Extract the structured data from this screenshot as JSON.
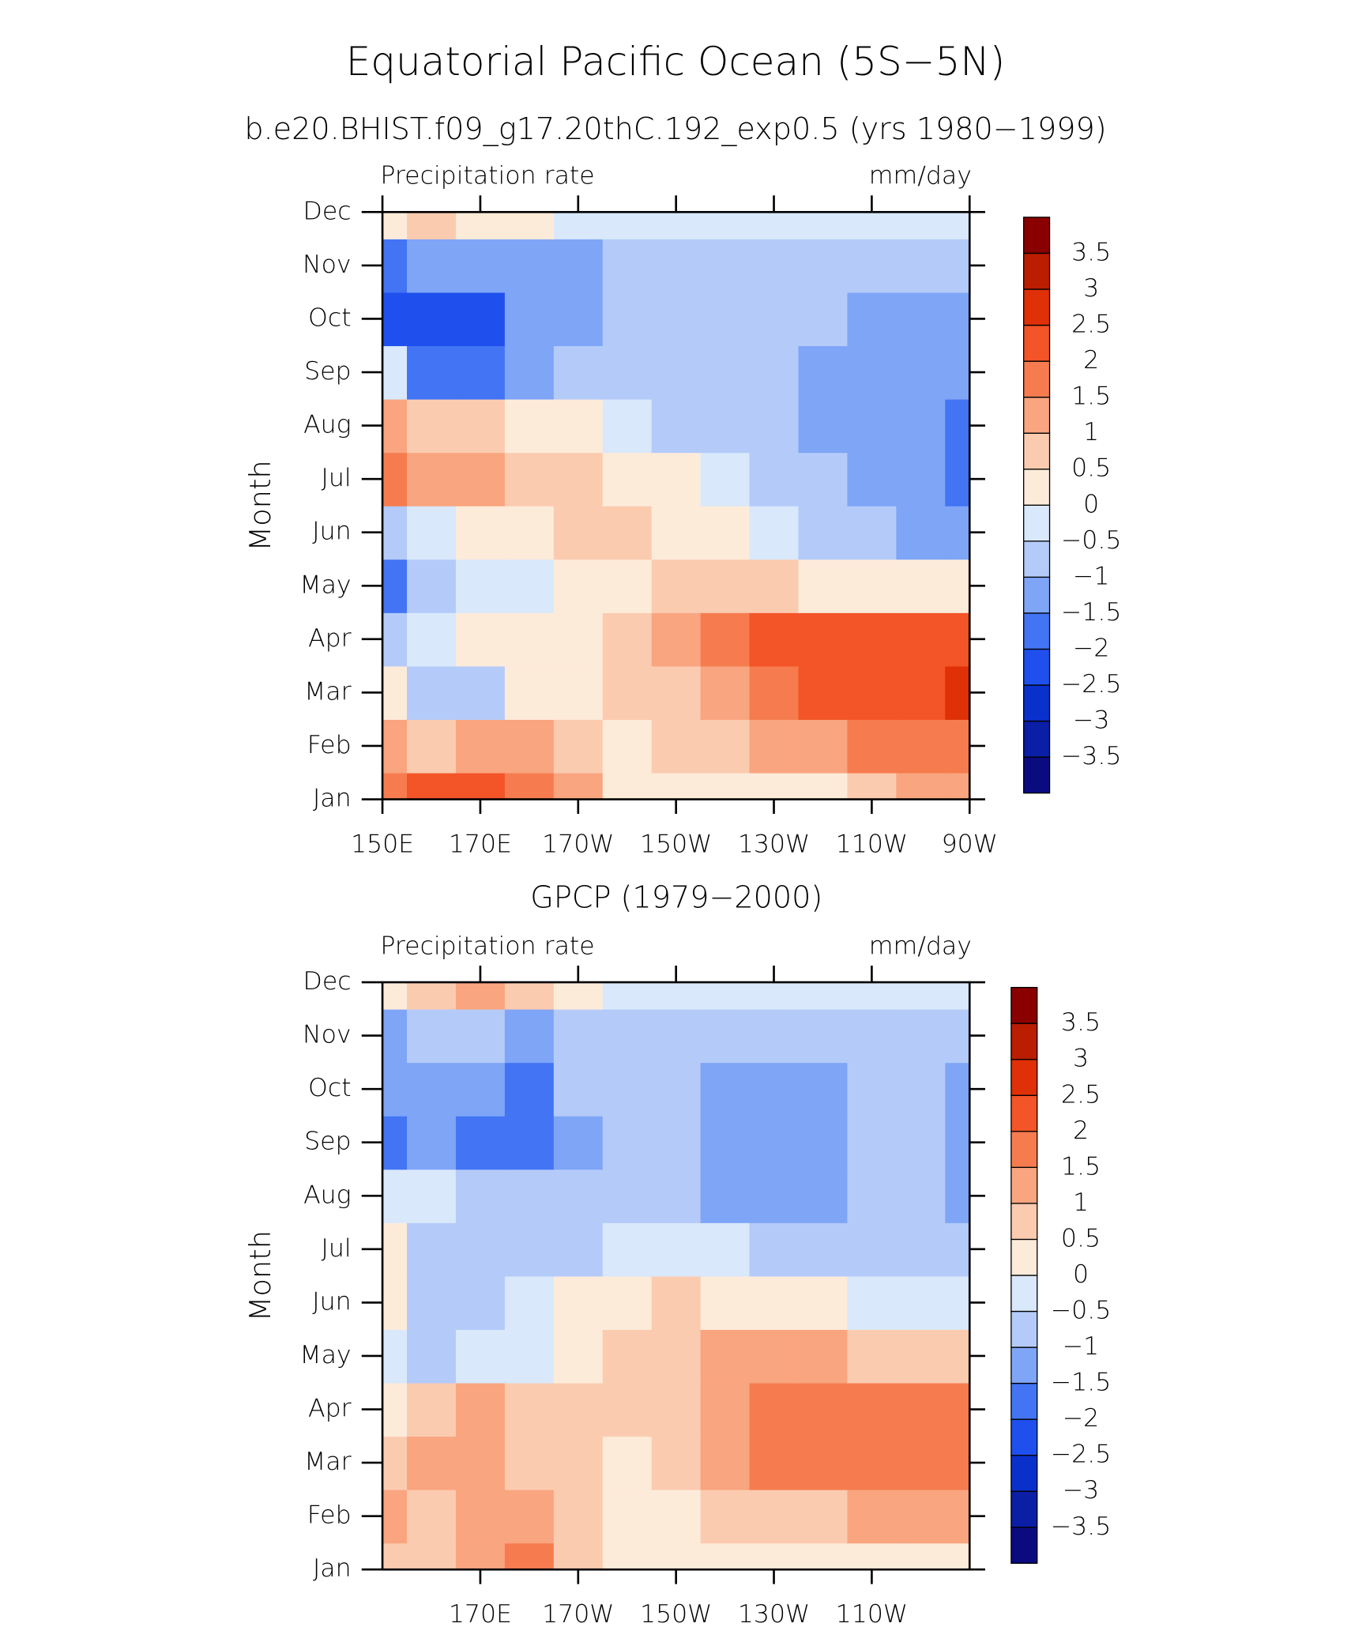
{
  "chart_data": [
    {
      "type": "contour",
      "title": "Equatorial Pacific Ocean (5S−5N)",
      "subtitle": "b.e20.BHIST.f09_g17.20thC.192_exp0.5 (yrs 1980−1999)",
      "left_label": "Precipitation rate",
      "right_label": "mm/day",
      "ylabel": "Month",
      "x": [
        150,
        160,
        170,
        180,
        190,
        200,
        210,
        220,
        230,
        240,
        250,
        260,
        270
      ],
      "y": [
        1,
        2,
        3,
        4,
        5,
        6,
        7,
        8,
        9,
        10,
        11,
        12
      ],
      "z": [
        [
          1.5,
          2.0,
          2.2,
          1.8,
          1.0,
          0.4,
          0.3,
          0.3,
          0.3,
          0.4,
          0.6,
          1.0,
          1.2
        ],
        [
          1.2,
          0.8,
          1.0,
          1.0,
          0.7,
          0.4,
          0.5,
          0.7,
          1.0,
          1.3,
          1.6,
          1.8,
          1.8
        ],
        [
          0.3,
          -0.7,
          -0.8,
          0.2,
          0.3,
          0.5,
          0.8,
          1.2,
          1.6,
          2.0,
          2.3,
          2.4,
          2.6
        ],
        [
          -1.0,
          -0.5,
          0.1,
          0.2,
          0.3,
          0.6,
          1.0,
          1.6,
          2.0,
          2.1,
          2.1,
          2.1,
          2.2
        ],
        [
          -1.6,
          -0.8,
          -0.3,
          -0.3,
          0.2,
          0.3,
          0.5,
          0.6,
          0.6,
          0.4,
          0.2,
          0.0,
          0.1
        ],
        [
          -0.6,
          -0.4,
          0.2,
          0.3,
          0.6,
          0.8,
          0.4,
          0.1,
          -0.3,
          -0.6,
          -0.9,
          -1.2,
          -1.2
        ],
        [
          1.8,
          1.0,
          1.1,
          0.8,
          0.6,
          0.4,
          0.0,
          -0.4,
          -0.8,
          -1.0,
          -1.2,
          -1.3,
          -1.6
        ],
        [
          1.0,
          0.7,
          0.5,
          0.2,
          0.0,
          -0.3,
          -0.6,
          -0.8,
          -1.0,
          -1.1,
          -1.2,
          -1.4,
          -1.6
        ],
        [
          -0.5,
          -1.8,
          -1.7,
          -1.1,
          -0.8,
          -0.8,
          -0.9,
          -1.0,
          -0.9,
          -1.1,
          -1.3,
          -1.4,
          -1.3
        ],
        [
          -2.2,
          -2.1,
          -2.2,
          -1.4,
          -1.2,
          -0.9,
          -0.8,
          -0.8,
          -0.9,
          -1.0,
          -1.3,
          -1.3,
          -1.3
        ],
        [
          -1.6,
          -1.4,
          -1.5,
          -1.3,
          -1.1,
          -0.9,
          -0.8,
          -0.8,
          -0.7,
          -0.7,
          -0.7,
          -0.7,
          -0.7
        ],
        [
          0.4,
          0.6,
          0.4,
          0.0,
          -0.3,
          -0.4,
          -0.5,
          -0.5,
          -0.5,
          -0.4,
          -0.3,
          -0.3,
          -0.3
        ]
      ],
      "xlim": [
        150,
        270
      ],
      "xticks": [
        {
          "value": 150,
          "label": "150E"
        },
        {
          "value": 170,
          "label": "170E"
        },
        {
          "value": 190,
          "label": "170W"
        },
        {
          "value": 210,
          "label": "150W"
        },
        {
          "value": 230,
          "label": "130W"
        },
        {
          "value": 250,
          "label": "110W"
        },
        {
          "value": 270,
          "label": "90W"
        }
      ],
      "ylim": [
        1,
        12
      ],
      "yticks": [
        {
          "value": 1,
          "label": "Jan"
        },
        {
          "value": 2,
          "label": "Feb"
        },
        {
          "value": 3,
          "label": "Mar"
        },
        {
          "value": 4,
          "label": "Apr"
        },
        {
          "value": 5,
          "label": "May"
        },
        {
          "value": 6,
          "label": "Jun"
        },
        {
          "value": 7,
          "label": "Jul"
        },
        {
          "value": 8,
          "label": "Aug"
        },
        {
          "value": 9,
          "label": "Sep"
        },
        {
          "value": 10,
          "label": "Oct"
        },
        {
          "value": 11,
          "label": "Nov"
        },
        {
          "value": 12,
          "label": "Dec"
        }
      ],
      "levels": [
        {
          "value": -3.5,
          "label": "−3.5"
        },
        {
          "value": -3,
          "label": "−3"
        },
        {
          "value": -2.5,
          "label": "−2.5"
        },
        {
          "value": -2,
          "label": "−2"
        },
        {
          "value": -1.5,
          "label": "−1.5"
        },
        {
          "value": -1,
          "label": "−1"
        },
        {
          "value": -0.5,
          "label": "−0.5"
        },
        0,
        0.5,
        1,
        1.5,
        2,
        2.5,
        3,
        3.5
      ],
      "colors": [
        "#0b0b80",
        "#0a1ea6",
        "#0a30cc",
        "#1f50ee",
        "#4274f4",
        "#7fa5f7",
        "#b4cbf9",
        "#d9e8fb",
        "#fdebda",
        "#fbcbb0",
        "#f9a57f",
        "#f67c4f",
        "#f35428",
        "#df3008",
        "#bb1d00",
        "#8a0000"
      ]
    },
    {
      "type": "contour",
      "subtitle": "GPCP (1979−2000)",
      "left_label": "Precipitation rate",
      "right_label": "mm/day",
      "ylabel": "Month",
      "x": [
        150,
        160,
        170,
        180,
        190,
        200,
        210,
        220,
        230,
        240,
        250,
        260,
        270
      ],
      "y": [
        1,
        2,
        3,
        4,
        5,
        6,
        7,
        8,
        9,
        10,
        11,
        12
      ],
      "z": [
        [
          0.6,
          0.8,
          1.0,
          1.6,
          0.7,
          0.2,
          0.2,
          0.2,
          0.2,
          0.2,
          0.1,
          0.2,
          0.3
        ],
        [
          1.2,
          0.6,
          1.0,
          1.2,
          0.6,
          0.2,
          0.4,
          0.6,
          0.8,
          0.9,
          1.0,
          1.2,
          1.3
        ],
        [
          0.8,
          1.2,
          1.1,
          0.9,
          0.6,
          0.3,
          0.6,
          1.0,
          1.5,
          1.8,
          1.8,
          1.7,
          1.9
        ],
        [
          0.2,
          0.5,
          1.0,
          0.6,
          0.5,
          0.6,
          0.9,
          1.4,
          1.7,
          1.9,
          1.8,
          1.7,
          1.8
        ],
        [
          -0.3,
          -0.6,
          -0.4,
          -0.2,
          0.4,
          0.6,
          0.8,
          1.0,
          1.1,
          1.0,
          0.9,
          0.6,
          0.5
        ],
        [
          0.3,
          -0.7,
          -0.6,
          -0.5,
          0.2,
          0.4,
          0.5,
          0.3,
          0.1,
          0.0,
          -0.1,
          -0.3,
          -0.3
        ],
        [
          0.4,
          -0.6,
          -0.7,
          -0.8,
          -0.6,
          -0.2,
          -0.1,
          -0.4,
          -0.6,
          -0.7,
          -0.8,
          -0.9,
          -1.0
        ],
        [
          -0.3,
          -0.5,
          -0.8,
          -0.9,
          -0.9,
          -0.8,
          -0.8,
          -1.2,
          -1.1,
          -1.1,
          -0.9,
          -1.0,
          -1.2
        ],
        [
          -1.8,
          -1.2,
          -1.6,
          -1.8,
          -1.1,
          -0.9,
          -0.9,
          -1.3,
          -1.3,
          -1.2,
          -1.0,
          -0.9,
          -1.2
        ],
        [
          -1.4,
          -1.1,
          -1.3,
          -1.7,
          -1.0,
          -0.8,
          -0.8,
          -1.2,
          -1.3,
          -1.1,
          -0.9,
          -0.9,
          -1.3
        ],
        [
          -1.2,
          -1.0,
          -1.0,
          -1.1,
          -0.9,
          -0.7,
          -0.6,
          -0.6,
          -0.7,
          -0.6,
          -0.6,
          -0.6,
          -0.9
        ],
        [
          0.2,
          0.6,
          1.0,
          0.6,
          0.3,
          -0.2,
          -0.3,
          -0.3,
          -0.3,
          -0.4,
          -0.4,
          -0.4,
          -0.3
        ]
      ],
      "xlim": [
        150,
        270
      ],
      "xticks": [
        {
          "value": 170,
          "label": "170E"
        },
        {
          "value": 190,
          "label": "170W"
        },
        {
          "value": 210,
          "label": "150W"
        },
        {
          "value": 230,
          "label": "130W"
        },
        {
          "value": 250,
          "label": "110W"
        }
      ],
      "ylim": [
        1,
        12
      ],
      "yticks": [
        {
          "value": 1,
          "label": "Jan"
        },
        {
          "value": 2,
          "label": "Feb"
        },
        {
          "value": 3,
          "label": "Mar"
        },
        {
          "value": 4,
          "label": "Apr"
        },
        {
          "value": 5,
          "label": "May"
        },
        {
          "value": 6,
          "label": "Jun"
        },
        {
          "value": 7,
          "label": "Jul"
        },
        {
          "value": 8,
          "label": "Aug"
        },
        {
          "value": 9,
          "label": "Sep"
        },
        {
          "value": 10,
          "label": "Oct"
        },
        {
          "value": 11,
          "label": "Nov"
        },
        {
          "value": 12,
          "label": "Dec"
        }
      ],
      "levels": [
        {
          "value": -3.5,
          "label": "−3.5"
        },
        {
          "value": -3,
          "label": "−3"
        },
        {
          "value": -2.5,
          "label": "−2.5"
        },
        {
          "value": -2,
          "label": "−2"
        },
        {
          "value": -1.5,
          "label": "−1.5"
        },
        {
          "value": -1,
          "label": "−1"
        },
        {
          "value": -0.5,
          "label": "−0.5"
        },
        0,
        0.5,
        1,
        1.5,
        2,
        2.5,
        3,
        3.5
      ],
      "colors": [
        "#0b0b80",
        "#0a1ea6",
        "#0a30cc",
        "#1f50ee",
        "#4274f4",
        "#7fa5f7",
        "#b4cbf9",
        "#d9e8fb",
        "#fdebda",
        "#fbcbb0",
        "#f9a57f",
        "#f67c4f",
        "#f35428",
        "#df3008",
        "#bb1d00",
        "#8a0000"
      ]
    }
  ]
}
